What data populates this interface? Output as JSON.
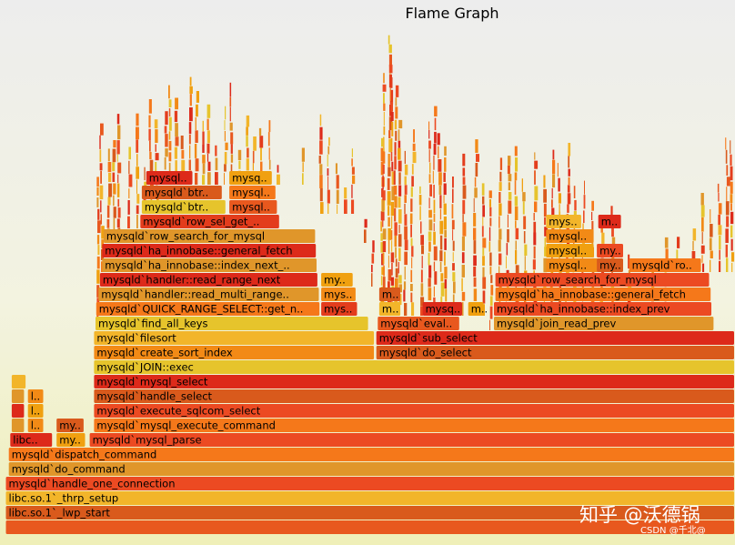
{
  "chart_data": {
    "type": "flame graph",
    "title": "Flame Graph",
    "frames": [
      {
        "label": "",
        "depth": 0,
        "x": 0.008,
        "w": 0.992
      },
      {
        "label": "libc.so.1`_lwp_start",
        "depth": 1,
        "x": 0.008,
        "w": 0.992
      },
      {
        "label": "libc.so.1`_thrp_setup",
        "depth": 2,
        "x": 0.008,
        "w": 0.992
      },
      {
        "label": "mysqld`handle_one_connection",
        "depth": 3,
        "x": 0.008,
        "w": 0.992
      },
      {
        "label": "mysqld`do_command",
        "depth": 4,
        "x": 0.012,
        "w": 0.988
      },
      {
        "label": "mysqld`dispatch_command",
        "depth": 5,
        "x": 0.012,
        "w": 0.988
      },
      {
        "label": "libc..",
        "depth": 6,
        "x": 0.014,
        "w": 0.058
      },
      {
        "label": "my..",
        "depth": 6,
        "x": 0.077,
        "w": 0.04
      },
      {
        "label": "mysqld`mysql_parse",
        "depth": 6,
        "x": 0.122,
        "w": 0.878
      },
      {
        "label": "",
        "depth": 7,
        "x": 0.016,
        "w": 0.018
      },
      {
        "label": "l..",
        "depth": 7,
        "x": 0.038,
        "w": 0.022
      },
      {
        "label": "my..",
        "depth": 7,
        "x": 0.077,
        "w": 0.038
      },
      {
        "label": "mysqld`mysql_execute_command",
        "depth": 7,
        "x": 0.128,
        "w": 0.872
      },
      {
        "label": "",
        "depth": 8,
        "x": 0.016,
        "w": 0.018
      },
      {
        "label": "l..",
        "depth": 8,
        "x": 0.038,
        "w": 0.022
      },
      {
        "label": "mysqld`execute_sqlcom_select",
        "depth": 8,
        "x": 0.128,
        "w": 0.872
      },
      {
        "label": "",
        "depth": 9,
        "x": 0.016,
        "w": 0.018
      },
      {
        "label": "l..",
        "depth": 9,
        "x": 0.038,
        "w": 0.022
      },
      {
        "label": "mysqld`handle_select",
        "depth": 9,
        "x": 0.128,
        "w": 0.872
      },
      {
        "label": "",
        "depth": 10,
        "x": 0.016,
        "w": 0.02
      },
      {
        "label": "mysqld`mysql_select",
        "depth": 10,
        "x": 0.128,
        "w": 0.872
      },
      {
        "label": "mysqld`JOIN::exec",
        "depth": 11,
        "x": 0.128,
        "w": 0.872
      },
      {
        "label": "mysqld`create_sort_index",
        "depth": 12,
        "x": 0.128,
        "w": 0.382
      },
      {
        "label": "mysqld`do_select",
        "depth": 12,
        "x": 0.512,
        "w": 0.488
      },
      {
        "label": "mysqld`filesort",
        "depth": 13,
        "x": 0.128,
        "w": 0.382
      },
      {
        "label": "mysqld`sub_select",
        "depth": 13,
        "x": 0.512,
        "w": 0.488
      },
      {
        "label": "mysqld`find_all_keys",
        "depth": 14,
        "x": 0.13,
        "w": 0.372
      },
      {
        "label": "mysqld`eval..",
        "depth": 14,
        "x": 0.514,
        "w": 0.112
      },
      {
        "label": "mysqld`join_read_prev",
        "depth": 14,
        "x": 0.672,
        "w": 0.3
      },
      {
        "label": "mysqld`QUICK_RANGE_SELECT::get_n..",
        "depth": 15,
        "x": 0.131,
        "w": 0.305
      },
      {
        "label": "mys..",
        "depth": 15,
        "x": 0.437,
        "w": 0.05
      },
      {
        "label": "m..",
        "depth": 15,
        "x": 0.516,
        "w": 0.03
      },
      {
        "label": "mysq..",
        "depth": 15,
        "x": 0.575,
        "w": 0.055
      },
      {
        "label": "m..",
        "depth": 15,
        "x": 0.637,
        "w": 0.022
      },
      {
        "label": "mysqld`ha_innobase::index_prev",
        "depth": 15,
        "x": 0.672,
        "w": 0.297
      },
      {
        "label": "mysqld`handler::read_multi_range..",
        "depth": 16,
        "x": 0.134,
        "w": 0.301
      },
      {
        "label": "mys..",
        "depth": 16,
        "x": 0.437,
        "w": 0.048
      },
      {
        "label": "m..",
        "depth": 16,
        "x": 0.516,
        "w": 0.03
      },
      {
        "label": "mysqld`ha_innobase::general_fetch",
        "depth": 16,
        "x": 0.674,
        "w": 0.294
      },
      {
        "label": "mysqld`handler::read_range_next",
        "depth": 17,
        "x": 0.136,
        "w": 0.297
      },
      {
        "label": "my..",
        "depth": 17,
        "x": 0.437,
        "w": 0.044
      },
      {
        "label": "mysqld`row_search_for_mysql",
        "depth": 17,
        "x": 0.674,
        "w": 0.292
      },
      {
        "label": "mysqld`ha_innobase::index_next_..",
        "depth": 18,
        "x": 0.139,
        "w": 0.293
      },
      {
        "label": "mysql..",
        "depth": 18,
        "x": 0.743,
        "w": 0.072
      },
      {
        "label": "my..",
        "depth": 18,
        "x": 0.812,
        "w": 0.037
      },
      {
        "label": "mysqld`ro..",
        "depth": 18,
        "x": 0.856,
        "w": 0.099
      },
      {
        "label": "mysqld`ha_innobase::general_fetch",
        "depth": 19,
        "x": 0.139,
        "w": 0.292
      },
      {
        "label": "mysql..",
        "depth": 19,
        "x": 0.743,
        "w": 0.066
      },
      {
        "label": "my..",
        "depth": 19,
        "x": 0.812,
        "w": 0.037
      },
      {
        "label": "mysqld`row_search_for_mysql",
        "depth": 20,
        "x": 0.141,
        "w": 0.289
      },
      {
        "label": "mysql..",
        "depth": 20,
        "x": 0.743,
        "w": 0.066
      },
      {
        "label": "mysqld`row_sel_get_..",
        "depth": 21,
        "x": 0.191,
        "w": 0.19
      },
      {
        "label": "mys..",
        "depth": 21,
        "x": 0.743,
        "w": 0.049
      },
      {
        "label": "m..",
        "depth": 21,
        "x": 0.814,
        "w": 0.032
      },
      {
        "label": "mysqld`btr..",
        "depth": 22,
        "x": 0.193,
        "w": 0.115
      },
      {
        "label": "mysql..",
        "depth": 22,
        "x": 0.312,
        "w": 0.066
      },
      {
        "label": "mysqld`btr..",
        "depth": 23,
        "x": 0.193,
        "w": 0.11
      },
      {
        "label": "mysql..",
        "depth": 23,
        "x": 0.312,
        "w": 0.064
      },
      {
        "label": "mysql..",
        "depth": 24,
        "x": 0.199,
        "w": 0.064
      },
      {
        "label": "mysq..",
        "depth": 24,
        "x": 0.312,
        "w": 0.059
      }
    ]
  },
  "watermark": {
    "text": "知乎 @沃德锅",
    "credit": "CSDN @千北@"
  }
}
